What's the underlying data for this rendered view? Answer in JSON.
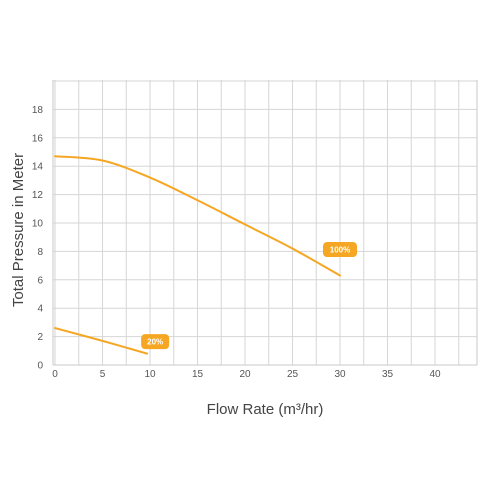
{
  "chart_data": {
    "type": "line",
    "xlabel": "Flow Rate (m³/hr)",
    "ylabel": "Total Pressure in Meter",
    "xlim": [
      0,
      45
    ],
    "ylim": [
      0,
      20
    ],
    "x_ticks": [
      0,
      5,
      10,
      15,
      20,
      25,
      30,
      35,
      40
    ],
    "y_ticks": [
      0,
      2,
      4,
      6,
      8,
      10,
      12,
      14,
      16,
      18
    ],
    "grid": true,
    "series": [
      {
        "name": "100%",
        "color": "#f5a623",
        "x": [
          0,
          5,
          10,
          15,
          20,
          25,
          30
        ],
        "y": [
          14.7,
          14.4,
          13.2,
          11.6,
          9.9,
          8.2,
          6.3
        ]
      },
      {
        "name": "20%",
        "color": "#f5a623",
        "x": [
          0,
          5,
          9.7
        ],
        "y": [
          2.6,
          1.7,
          0.8
        ]
      }
    ]
  }
}
